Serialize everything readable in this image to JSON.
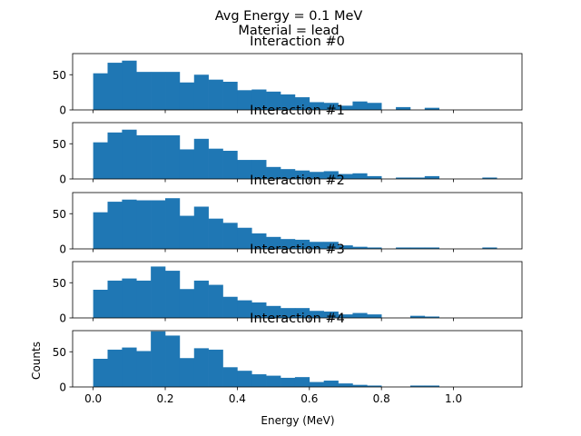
{
  "figure": {
    "title_line1": "Avg Energy = 0.1 MeV",
    "title_line2": "Material = lead",
    "xlabel": "Energy (MeV)",
    "ylabel": "Counts"
  },
  "colors": {
    "bar": "#1f77b4"
  },
  "chart_data": [
    {
      "type": "bar",
      "title": "Interaction #0",
      "x_ticks": [
        "0.0",
        "0.2",
        "0.4",
        "0.6",
        "0.8",
        "1.0"
      ],
      "xlim": [
        -0.057,
        1.19
      ],
      "y_ticks": [
        "0",
        "50"
      ],
      "ylim": [
        0,
        80
      ],
      "bin_width": 0.04,
      "bins": [
        [
          0.0,
          52
        ],
        [
          0.04,
          67
        ],
        [
          0.08,
          70
        ],
        [
          0.12,
          54
        ],
        [
          0.16,
          54
        ],
        [
          0.2,
          54
        ],
        [
          0.24,
          39
        ],
        [
          0.28,
          50
        ],
        [
          0.32,
          43
        ],
        [
          0.36,
          40
        ],
        [
          0.4,
          28
        ],
        [
          0.44,
          29
        ],
        [
          0.48,
          26
        ],
        [
          0.52,
          22
        ],
        [
          0.56,
          18
        ],
        [
          0.6,
          11
        ],
        [
          0.64,
          10
        ],
        [
          0.68,
          6
        ],
        [
          0.72,
          12
        ],
        [
          0.76,
          10
        ],
        [
          0.84,
          4
        ],
        [
          0.92,
          3
        ]
      ],
      "xlabel": "",
      "ylabel": ""
    },
    {
      "type": "bar",
      "title": "Interaction #1",
      "x_ticks": [
        "0.0",
        "0.2",
        "0.4",
        "0.6",
        "0.8",
        "1.0"
      ],
      "xlim": [
        -0.057,
        1.19
      ],
      "y_ticks": [
        "0",
        "50"
      ],
      "ylim": [
        0,
        80
      ],
      "bin_width": 0.04,
      "bins": [
        [
          0.0,
          52
        ],
        [
          0.04,
          66
        ],
        [
          0.08,
          70
        ],
        [
          0.12,
          62
        ],
        [
          0.16,
          62
        ],
        [
          0.2,
          62
        ],
        [
          0.24,
          42
        ],
        [
          0.28,
          57
        ],
        [
          0.32,
          43
        ],
        [
          0.36,
          40
        ],
        [
          0.4,
          27
        ],
        [
          0.44,
          27
        ],
        [
          0.48,
          17
        ],
        [
          0.52,
          14
        ],
        [
          0.56,
          12
        ],
        [
          0.6,
          10
        ],
        [
          0.64,
          11
        ],
        [
          0.68,
          7
        ],
        [
          0.72,
          8
        ],
        [
          0.76,
          4
        ],
        [
          0.84,
          2
        ],
        [
          0.88,
          2
        ],
        [
          0.92,
          4
        ],
        [
          1.08,
          2
        ]
      ],
      "xlabel": "",
      "ylabel": ""
    },
    {
      "type": "bar",
      "title": "Interaction #2",
      "x_ticks": [
        "0.0",
        "0.2",
        "0.4",
        "0.6",
        "0.8",
        "1.0"
      ],
      "xlim": [
        -0.057,
        1.19
      ],
      "y_ticks": [
        "0",
        "50"
      ],
      "ylim": [
        0,
        80
      ],
      "bin_width": 0.04,
      "bins": [
        [
          0.0,
          52
        ],
        [
          0.04,
          67
        ],
        [
          0.08,
          70
        ],
        [
          0.12,
          69
        ],
        [
          0.16,
          69
        ],
        [
          0.2,
          72
        ],
        [
          0.24,
          47
        ],
        [
          0.28,
          60
        ],
        [
          0.32,
          43
        ],
        [
          0.36,
          37
        ],
        [
          0.4,
          30
        ],
        [
          0.44,
          22
        ],
        [
          0.48,
          17
        ],
        [
          0.52,
          14
        ],
        [
          0.56,
          13
        ],
        [
          0.6,
          10
        ],
        [
          0.64,
          10
        ],
        [
          0.68,
          5
        ],
        [
          0.72,
          3
        ],
        [
          0.76,
          2
        ],
        [
          0.84,
          2
        ],
        [
          0.88,
          2
        ],
        [
          0.92,
          2
        ],
        [
          1.08,
          2
        ]
      ],
      "xlabel": "",
      "ylabel": ""
    },
    {
      "type": "bar",
      "title": "Interaction #3",
      "x_ticks": [
        "0.0",
        "0.2",
        "0.4",
        "0.6",
        "0.8",
        "1.0"
      ],
      "xlim": [
        -0.057,
        1.19
      ],
      "y_ticks": [
        "0",
        "50"
      ],
      "ylim": [
        0,
        80
      ],
      "bin_width": 0.04,
      "bins": [
        [
          0.0,
          40
        ],
        [
          0.04,
          53
        ],
        [
          0.08,
          56
        ],
        [
          0.12,
          53
        ],
        [
          0.16,
          73
        ],
        [
          0.2,
          67
        ],
        [
          0.24,
          41
        ],
        [
          0.28,
          53
        ],
        [
          0.32,
          47
        ],
        [
          0.36,
          30
        ],
        [
          0.4,
          25
        ],
        [
          0.44,
          22
        ],
        [
          0.48,
          17
        ],
        [
          0.52,
          14
        ],
        [
          0.56,
          14
        ],
        [
          0.6,
          10
        ],
        [
          0.64,
          9
        ],
        [
          0.68,
          5
        ],
        [
          0.72,
          7
        ],
        [
          0.76,
          5
        ],
        [
          0.88,
          3
        ],
        [
          0.92,
          2
        ]
      ],
      "xlabel": "",
      "ylabel": ""
    },
    {
      "type": "bar",
      "title": "Interaction #4",
      "x_ticks": [
        "0.0",
        "0.2",
        "0.4",
        "0.6",
        "0.8",
        "1.0"
      ],
      "xlim": [
        -0.057,
        1.19
      ],
      "y_ticks": [
        "0",
        "50"
      ],
      "ylim": [
        0,
        80
      ],
      "bin_width": 0.04,
      "bins": [
        [
          0.0,
          40
        ],
        [
          0.04,
          53
        ],
        [
          0.08,
          56
        ],
        [
          0.12,
          51
        ],
        [
          0.16,
          79
        ],
        [
          0.2,
          73
        ],
        [
          0.24,
          41
        ],
        [
          0.28,
          55
        ],
        [
          0.32,
          53
        ],
        [
          0.36,
          28
        ],
        [
          0.4,
          23
        ],
        [
          0.44,
          18
        ],
        [
          0.48,
          16
        ],
        [
          0.52,
          13
        ],
        [
          0.56,
          14
        ],
        [
          0.6,
          7
        ],
        [
          0.64,
          9
        ],
        [
          0.68,
          5
        ],
        [
          0.72,
          3
        ],
        [
          0.76,
          2
        ],
        [
          0.88,
          2
        ],
        [
          0.92,
          2
        ]
      ],
      "xlabel": "Energy (MeV)",
      "ylabel": "Counts"
    }
  ]
}
